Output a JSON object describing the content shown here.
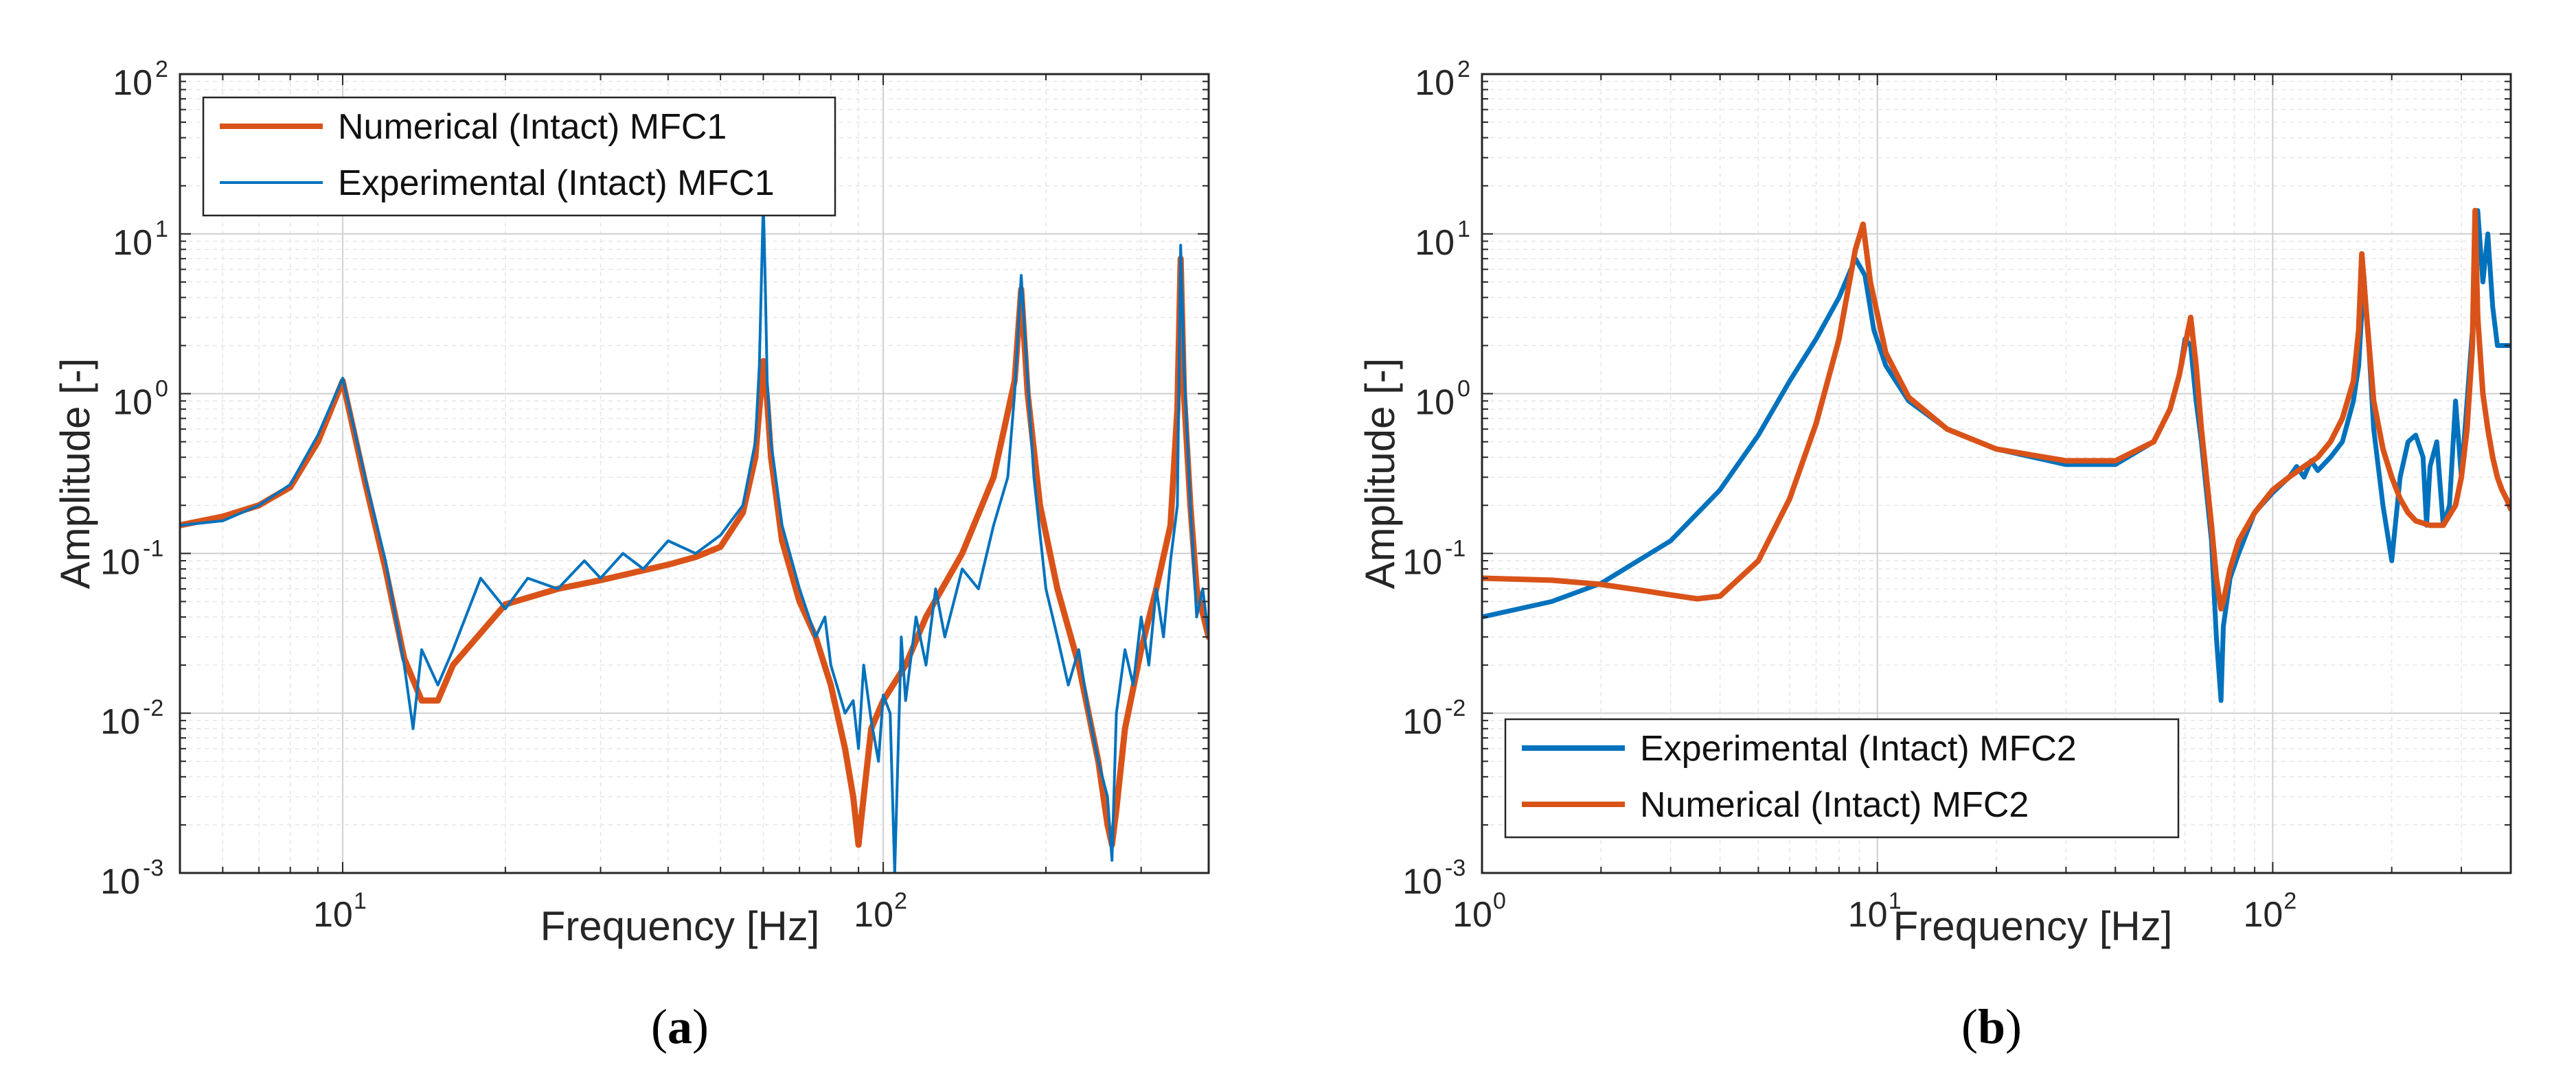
{
  "chart_data": [
    {
      "type": "line",
      "caption_open": "(",
      "caption_letter": "a",
      "caption_close": ")",
      "xlabel": "Frequency [Hz]",
      "ylabel": "Amplitude [-]",
      "xscale": "log",
      "yscale": "log",
      "xlim": [
        5,
        400
      ],
      "ylim": [
        0.001,
        100
      ],
      "grid": true,
      "legend_position": "top-left",
      "xticks": [
        {
          "base": "10",
          "exp": "1",
          "value": 10
        },
        {
          "base": "10",
          "exp": "2",
          "value": 100
        }
      ],
      "yticks": [
        {
          "base": "10",
          "exp": "-3",
          "value": 0.001
        },
        {
          "base": "10",
          "exp": "-2",
          "value": 0.01
        },
        {
          "base": "10",
          "exp": "-1",
          "value": 0.1
        },
        {
          "base": "10",
          "exp": "0",
          "value": 1
        },
        {
          "base": "10",
          "exp": "1",
          "value": 10
        },
        {
          "base": "10",
          "exp": "2",
          "value": 100
        }
      ],
      "series": [
        {
          "name": "Numerical (Intact) MFC1",
          "color": "#D95319",
          "x": [
            5,
            6,
            7,
            8,
            9,
            10,
            11,
            12,
            13,
            14,
            15,
            16,
            20,
            25,
            30,
            40,
            45,
            50,
            55,
            58,
            59,
            60,
            61,
            62,
            65,
            70,
            75,
            80,
            85,
            88,
            90,
            92,
            95,
            100,
            110,
            120,
            140,
            160,
            175,
            180,
            185,
            195,
            210,
            230,
            250,
            260,
            265,
            270,
            280,
            300,
            320,
            340,
            350,
            355,
            360,
            370,
            380,
            400
          ],
          "values": [
            0.15,
            0.17,
            0.2,
            0.26,
            0.5,
            1.2,
            0.28,
            0.08,
            0.022,
            0.012,
            0.012,
            0.02,
            0.048,
            0.06,
            0.068,
            0.085,
            0.095,
            0.11,
            0.18,
            0.4,
            0.8,
            1.6,
            0.9,
            0.4,
            0.12,
            0.05,
            0.03,
            0.015,
            0.006,
            0.003,
            0.0015,
            0.003,
            0.008,
            0.012,
            0.02,
            0.04,
            0.1,
            0.3,
            1.2,
            4.5,
            1.0,
            0.2,
            0.06,
            0.02,
            0.005,
            0.002,
            0.0015,
            0.0025,
            0.008,
            0.025,
            0.06,
            0.15,
            0.8,
            7.0,
            1.0,
            0.2,
            0.06,
            0.03
          ]
        },
        {
          "name": "Experimental (Intact) MFC1",
          "color": "#0072BD",
          "x": [
            5,
            6,
            7,
            8,
            9,
            10,
            11,
            12,
            13,
            13.5,
            14,
            15,
            16,
            18,
            20,
            22,
            25,
            28,
            30,
            33,
            36,
            40,
            45,
            50,
            55,
            58,
            59,
            60,
            60.5,
            61,
            62,
            65,
            70,
            75,
            78,
            80,
            85,
            88,
            90,
            92,
            95,
            98,
            100,
            103,
            105,
            108,
            110,
            115,
            120,
            125,
            130,
            140,
            150,
            160,
            170,
            175,
            180,
            185,
            190,
            200,
            210,
            220,
            230,
            240,
            250,
            260,
            265,
            270,
            280,
            290,
            300,
            310,
            320,
            330,
            340,
            350,
            355,
            360,
            370,
            380,
            390,
            400
          ],
          "values": [
            0.15,
            0.16,
            0.2,
            0.27,
            0.55,
            1.25,
            0.3,
            0.09,
            0.02,
            0.008,
            0.025,
            0.015,
            0.025,
            0.07,
            0.045,
            0.07,
            0.06,
            0.09,
            0.07,
            0.1,
            0.08,
            0.12,
            0.1,
            0.13,
            0.2,
            0.5,
            1.5,
            16.0,
            5.0,
            1.2,
            0.5,
            0.15,
            0.06,
            0.03,
            0.04,
            0.02,
            0.01,
            0.012,
            0.006,
            0.02,
            0.009,
            0.005,
            0.013,
            0.01,
            0.001,
            0.03,
            0.012,
            0.04,
            0.02,
            0.06,
            0.03,
            0.08,
            0.06,
            0.15,
            0.3,
            1.0,
            5.5,
            1.2,
            0.3,
            0.06,
            0.03,
            0.015,
            0.025,
            0.01,
            0.005,
            0.003,
            0.0012,
            0.01,
            0.025,
            0.015,
            0.04,
            0.02,
            0.06,
            0.03,
            0.09,
            0.2,
            8.5,
            1.5,
            0.2,
            0.04,
            0.06,
            0.03
          ]
        }
      ]
    },
    {
      "type": "line",
      "caption_open": "(",
      "caption_letter": "b",
      "caption_close": ")",
      "xlabel": "Frequency [Hz]",
      "ylabel": "Amplitude [-]",
      "xscale": "log",
      "yscale": "log",
      "xlim": [
        1,
        400
      ],
      "ylim": [
        0.001,
        100
      ],
      "grid": true,
      "legend_position": "bottom-left",
      "xticks": [
        {
          "base": "10",
          "exp": "0",
          "value": 1
        },
        {
          "base": "10",
          "exp": "1",
          "value": 10
        },
        {
          "base": "10",
          "exp": "2",
          "value": 100
        }
      ],
      "yticks": [
        {
          "base": "10",
          "exp": "-3",
          "value": 0.001
        },
        {
          "base": "10",
          "exp": "-2",
          "value": 0.01
        },
        {
          "base": "10",
          "exp": "-1",
          "value": 0.1
        },
        {
          "base": "10",
          "exp": "0",
          "value": 1
        },
        {
          "base": "10",
          "exp": "1",
          "value": 10
        },
        {
          "base": "10",
          "exp": "2",
          "value": 100
        }
      ],
      "series": [
        {
          "name": "Experimental (Intact) MFC2",
          "color": "#0072BD",
          "x": [
            1,
            1.5,
            2,
            3,
            4,
            5,
            6,
            7,
            8,
            8.8,
            9.3,
            9.8,
            10.5,
            12,
            15,
            20,
            30,
            40,
            50,
            55,
            58,
            60,
            62,
            64,
            66,
            70,
            72,
            74,
            75,
            78,
            82,
            90,
            100,
            110,
            115,
            120,
            125,
            130,
            140,
            150,
            160,
            165,
            170,
            175,
            180,
            190,
            200,
            210,
            220,
            230,
            240,
            245,
            250,
            260,
            270,
            280,
            290,
            300,
            320,
            330,
            340,
            350,
            360,
            370,
            380,
            390,
            400
          ],
          "values": [
            0.04,
            0.05,
            0.065,
            0.12,
            0.25,
            0.55,
            1.2,
            2.2,
            4.0,
            7.0,
            5.5,
            2.5,
            1.5,
            0.9,
            0.6,
            0.45,
            0.36,
            0.36,
            0.5,
            0.8,
            1.3,
            2.2,
            2.0,
            0.9,
            0.5,
            0.12,
            0.03,
            0.012,
            0.035,
            0.07,
            0.1,
            0.18,
            0.24,
            0.3,
            0.35,
            0.3,
            0.38,
            0.33,
            0.4,
            0.5,
            0.9,
            1.5,
            5.5,
            2.0,
            0.6,
            0.2,
            0.09,
            0.3,
            0.5,
            0.55,
            0.4,
            0.15,
            0.35,
            0.5,
            0.15,
            0.2,
            0.9,
            0.3,
            2.5,
            14.0,
            5.0,
            10.0,
            3.5,
            2.0,
            2.0,
            2.0,
            2.0
          ]
        },
        {
          "name": "Numerical (Intact) MFC2",
          "color": "#D95319",
          "x": [
            1,
            1.5,
            2,
            2.5,
            3,
            3.5,
            4,
            5,
            6,
            7,
            8,
            8.8,
            9.2,
            9.6,
            10.5,
            12,
            15,
            20,
            30,
            40,
            50,
            55,
            58,
            60,
            62,
            64,
            66,
            70,
            72,
            74,
            75,
            78,
            82,
            90,
            100,
            110,
            120,
            130,
            140,
            150,
            160,
            165,
            168,
            172,
            180,
            190,
            200,
            210,
            220,
            230,
            250,
            270,
            290,
            300,
            310,
            320,
            325,
            330,
            340,
            350,
            360,
            370,
            380,
            390,
            400
          ],
          "values": [
            0.07,
            0.068,
            0.064,
            0.059,
            0.055,
            0.052,
            0.054,
            0.09,
            0.22,
            0.65,
            2.2,
            8.0,
            11.5,
            5.0,
            1.8,
            0.95,
            0.6,
            0.45,
            0.38,
            0.38,
            0.5,
            0.8,
            1.3,
            2.0,
            3.0,
            1.5,
            0.6,
            0.15,
            0.07,
            0.045,
            0.05,
            0.08,
            0.12,
            0.18,
            0.25,
            0.3,
            0.35,
            0.4,
            0.5,
            0.7,
            1.2,
            2.5,
            7.5,
            3.5,
            0.9,
            0.45,
            0.3,
            0.22,
            0.18,
            0.16,
            0.15,
            0.15,
            0.2,
            0.3,
            0.6,
            2.0,
            14.0,
            3.0,
            1.0,
            0.6,
            0.4,
            0.3,
            0.25,
            0.22,
            0.19
          ]
        }
      ]
    }
  ]
}
